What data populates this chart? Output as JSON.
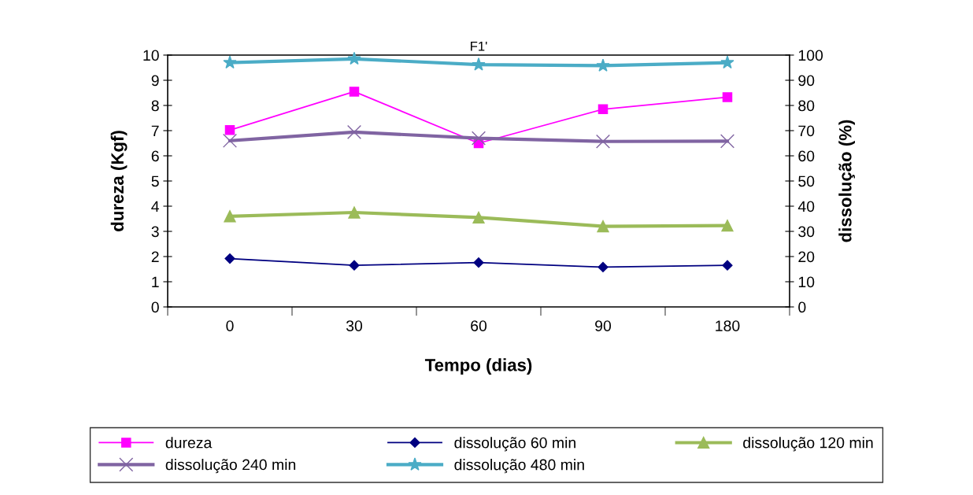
{
  "chart_data": {
    "type": "line",
    "title": "F1'",
    "xlabel": "Tempo (dias)",
    "ylabel": "dureza (Kgf)",
    "y2label": "dissolução (%)",
    "categories": [
      "0",
      "30",
      "60",
      "90",
      "180"
    ],
    "series": [
      {
        "name": "dureza",
        "color": "#ff00ff",
        "marker": "square",
        "values": [
          7.02,
          8.55,
          6.5,
          7.85,
          8.33
        ]
      },
      {
        "name": "dissolução 60 min",
        "color": "#000080",
        "marker": "diamond",
        "axis": "y2",
        "values": [
          19.2,
          16.5,
          17.6,
          15.8,
          16.5
        ]
      },
      {
        "name": "dissolução 120 min",
        "color": "#9bbb59",
        "marker": "triangle",
        "axis": "y2",
        "values": [
          36,
          37.5,
          35.5,
          32,
          32.3
        ]
      },
      {
        "name": "dissolução 240 min",
        "color": "#8064a2",
        "marker": "cross",
        "axis": "y2",
        "values": [
          66,
          69.4,
          67,
          65.7,
          65.8
        ]
      },
      {
        "name": "dissolução 480 min",
        "color": "#4bacc6",
        "marker": "star",
        "axis": "y2",
        "values": [
          97,
          98.5,
          96.2,
          95.8,
          97
        ]
      }
    ],
    "ylim": [
      0,
      10
    ],
    "yticks": [
      0,
      1,
      2,
      3,
      4,
      5,
      6,
      7,
      8,
      9,
      10
    ],
    "y2lim": [
      0,
      100
    ],
    "y2ticks": [
      0,
      10,
      20,
      30,
      40,
      50,
      60,
      70,
      80,
      90,
      100
    ],
    "grid": false,
    "legend": "bottom",
    "line_style": "solid"
  }
}
